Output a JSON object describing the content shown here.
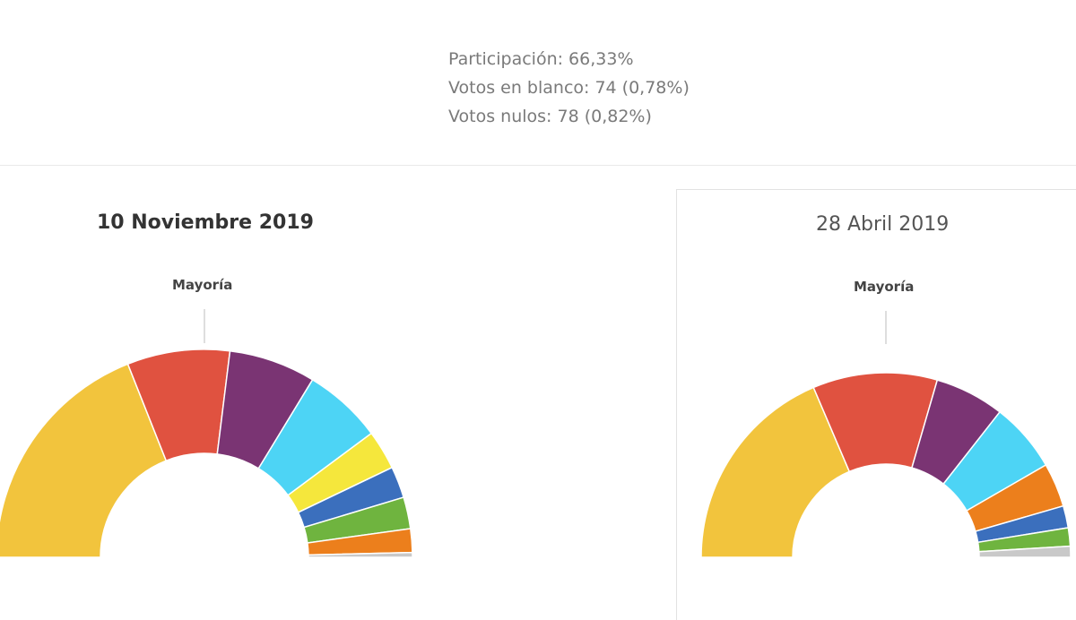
{
  "stats": {
    "participation": "Participación: 66,33%",
    "blank_votes": "Votos en blanco: 74 (0,78%)",
    "null_votes": "Votos nulos: 78 (0,82%)"
  },
  "chart_data": [
    {
      "type": "pie",
      "variant": "semicircle-donut",
      "title": "10 Noviembre 2019",
      "majority_label": "Mayoría",
      "majority_fraction": 0.5,
      "categories": [
        "",
        "",
        "",
        "",
        "",
        "",
        "",
        "",
        ""
      ],
      "values": [
        31.0,
        13.0,
        11.0,
        10.0,
        5.0,
        4.0,
        4.0,
        3.0,
        0.6
      ],
      "colors": [
        "#f2c43d",
        "#e05240",
        "#7a3473",
        "#4dd4f5",
        "#f5e73c",
        "#3b6fbd",
        "#6fb43f",
        "#ec7f1c",
        "#c9c9c9"
      ]
    },
    {
      "type": "pie",
      "variant": "semicircle-donut",
      "title": "28 Abril 2019",
      "majority_label": "Mayoría",
      "majority_fraction": 0.5,
      "categories": [
        "",
        "",
        "",
        "",
        "",
        "",
        "",
        ""
      ],
      "values": [
        29.0,
        17.0,
        9.5,
        9.5,
        6.0,
        3.0,
        2.5,
        1.5
      ],
      "colors": [
        "#f2c43d",
        "#e05240",
        "#7a3473",
        "#4dd4f5",
        "#ec7f1c",
        "#3b6fbd",
        "#6fb43f",
        "#c9c9c9"
      ]
    }
  ]
}
